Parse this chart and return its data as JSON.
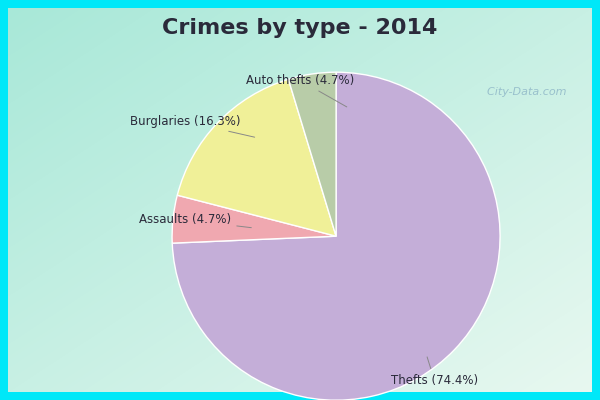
{
  "title": "Crimes by type - 2014",
  "slices": [
    {
      "label": "Thefts (74.4%)",
      "value": 74.4,
      "color": "#c4aed8"
    },
    {
      "label": "Auto thefts (4.7%)",
      "value": 4.7,
      "color": "#f0a8b0"
    },
    {
      "label": "Burglaries (16.3%)",
      "value": 16.3,
      "color": "#f0f098"
    },
    {
      "label": "Assaults (4.7%)",
      "value": 4.7,
      "color": "#b8cca8"
    }
  ],
  "bg_color_border": "#00e8f8",
  "bg_color_main_tl": "#a8e8d8",
  "bg_color_main_br": "#e8f0e0",
  "title_fontsize": 16,
  "label_fontsize": 8.5,
  "startangle": 90,
  "wedge_edge_color": "white",
  "title_color": "#2a2a3a",
  "label_color": "#2a2a3a",
  "border_width": 8
}
